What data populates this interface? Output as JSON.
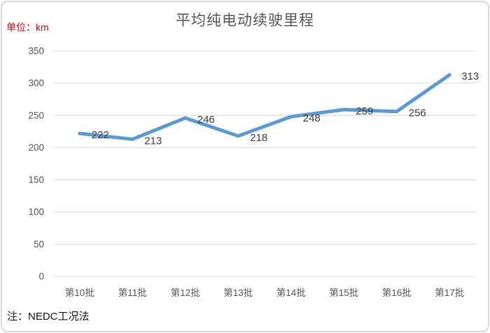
{
  "colors": {
    "line": "#5b9bd5",
    "title": "#595959",
    "unit_label": "#e00000",
    "axis_text": "#595959",
    "data_label": "#404040",
    "gridline": "#d8d8d8",
    "note_text": "#1a1a1a",
    "frame_border": "#d9d9d9",
    "background": "#ffffff"
  },
  "chart_data": {
    "type": "line",
    "title": "平均纯电动续驶里程",
    "unit_label": "单位：km",
    "note": "注：NEDC工况法",
    "categories": [
      "第10批",
      "第11批",
      "第12批",
      "第13批",
      "第14批",
      "第15批",
      "第16批",
      "第17批"
    ],
    "series": [
      {
        "name": "平均纯电动续驶里程",
        "values": [
          222,
          213,
          246,
          218,
          248,
          259,
          256,
          313
        ]
      }
    ],
    "yticks": [
      0,
      50,
      100,
      150,
      200,
      250,
      300,
      350
    ],
    "ylim": [
      0,
      350
    ],
    "xlabel": "",
    "ylabel": "",
    "grid": true,
    "legend_position": "none",
    "data_labels": true,
    "markers": false
  }
}
